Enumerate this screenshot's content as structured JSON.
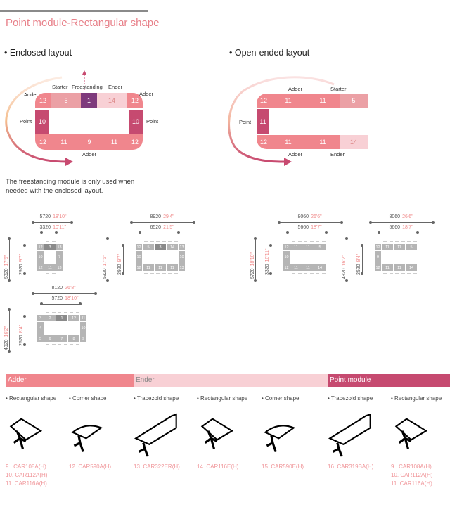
{
  "title": "Point module-Rectangular shape",
  "enclosed": {
    "heading": "• Enclosed layout",
    "labels": {
      "starter": "Starter",
      "freestanding": "Freestanding",
      "ender": "Ender",
      "adder_tl": "Adder",
      "adder_tr": "Adder",
      "point_l": "Point",
      "point_r": "Point",
      "adder_bottom": "Adder"
    },
    "modules": {
      "tl": "12",
      "starter": "5",
      "free": "1",
      "ender": "14",
      "tr": "12",
      "left": "10",
      "right": "10",
      "bl": "12",
      "b1": "11",
      "b2": "9",
      "b3": "11",
      "br": "12"
    }
  },
  "open": {
    "heading": "• Open-ended layout",
    "labels": {
      "adder_top": "Adder",
      "starter": "Starter",
      "point": "Point",
      "adder_bottom": "Adder",
      "ender": "Ender"
    },
    "modules": {
      "tl": "12",
      "t1": "11",
      "t2": "11",
      "starter": "5",
      "left": "11",
      "bl": "12",
      "b1": "11",
      "b2": "11",
      "ender": "14"
    }
  },
  "note": "The freestanding module is only used when needed with the enclosed layout.",
  "layouts": [
    {
      "outer_w": "5720",
      "outer_w_imp": "18'10\"",
      "inner_w": "3320",
      "inner_w_imp": "10'11\"",
      "outer_h": "5320",
      "outer_h_imp": "17'6\"",
      "inner_h": "2920",
      "inner_h_imp": "9'7\"",
      "top": [
        "3"
      ],
      "bottom": [
        "11"
      ],
      "left": [
        "10"
      ],
      "right": [
        "7"
      ],
      "corners": [
        "12",
        "13",
        "12",
        "13"
      ]
    },
    {
      "outer_w": "8920",
      "outer_w_imp": "29'4\"",
      "inner_w": "6520",
      "inner_w_imp": "21'5\"",
      "outer_h": "5320",
      "outer_h_imp": "17'6\"",
      "inner_h": "2920",
      "inner_h_imp": "9'7\"",
      "top": [
        "5",
        "3",
        "14"
      ],
      "bottom": [
        "11",
        "11",
        "11"
      ],
      "left": [
        "10"
      ],
      "right": [
        "10"
      ],
      "corners": [
        "12",
        "13",
        "12",
        "13"
      ]
    },
    {
      "outer_w": "8060",
      "outer_w_imp": "26'6\"",
      "inner_w": "5660",
      "inner_w_imp": "18'7\"",
      "outer_h": "5720",
      "outer_h_imp": "18'10\"",
      "inner_h": "3320",
      "inner_h_imp": "10'11\"",
      "top": [
        "11",
        "11",
        "5"
      ],
      "bottom": [
        "11",
        "11",
        "14"
      ],
      "left": [
        "10"
      ],
      "right": [],
      "corners": [
        "12",
        "",
        "12",
        ""
      ]
    },
    {
      "outer_w": "8060",
      "outer_w_imp": "26'6\"",
      "inner_w": "5660",
      "inner_w_imp": "18'7\"",
      "outer_h": "4920",
      "outer_h_imp": "16'2\"",
      "inner_h": "2520",
      "inner_h_imp": "8'4\"",
      "top": [
        "11",
        "11",
        "5"
      ],
      "bottom": [
        "11",
        "11",
        "14"
      ],
      "left": [
        "9"
      ],
      "right": [],
      "corners": [
        "12",
        "",
        "12",
        ""
      ]
    },
    {
      "outer_w": "8120",
      "outer_w_imp": "26'8\"",
      "inner_w": "5720",
      "inner_w_imp": "18'10\"",
      "outer_h": "4920",
      "outer_h_imp": "16'2\"",
      "inner_h": "2520",
      "inner_h_imp": "8'4\"",
      "top": [
        "2",
        "1",
        "12"
      ],
      "bottom": [
        "6",
        "7",
        "8"
      ],
      "left": [
        "4"
      ],
      "right": [
        "10"
      ],
      "corners": [
        "3",
        "11",
        "5",
        "9"
      ]
    }
  ],
  "categories": [
    {
      "label": "Adder",
      "color": "#f0868d"
    },
    {
      "label": "Ender",
      "color": "#f8d0d5"
    },
    {
      "label": "Point module",
      "color": "#c64a70"
    }
  ],
  "products": [
    {
      "shape": "• Rectangular shape",
      "codes": "9.  CAR108A(H)\n10. CAR112A(H)\n11. CAR116A(H)",
      "icon": "rect-table-icon"
    },
    {
      "shape": "• Corner shape",
      "codes": "12. CAR590A(H)",
      "icon": "corner-table-icon"
    },
    {
      "shape": "• Trapezoid shape",
      "codes": "13. CAR322ER(H)",
      "icon": "trapezoid-table-icon"
    },
    {
      "shape": "• Rectangular shape",
      "codes": "14. CAR116E(H)",
      "icon": "rect-table-icon"
    },
    {
      "shape": "• Corner shape",
      "codes": "15. CAR590E(H)",
      "icon": "corner-table-icon"
    },
    {
      "shape": "• Trapezoid shape",
      "codes": "16. CAR319BA(H)",
      "icon": "trapezoid-table-icon"
    },
    {
      "shape": "• Rectangular shape",
      "codes": "9.  CAR108A(H)\n10. CAR112A(H)\n11. CAR116A(H)",
      "icon": "rect-table-icon"
    }
  ],
  "colors": {
    "adder": "#f0868d",
    "starter": "#eba0a5",
    "ender": "#f8d0d5",
    "point": "#c64a70",
    "free": "#7e3a7c",
    "title": "#e8818a"
  }
}
